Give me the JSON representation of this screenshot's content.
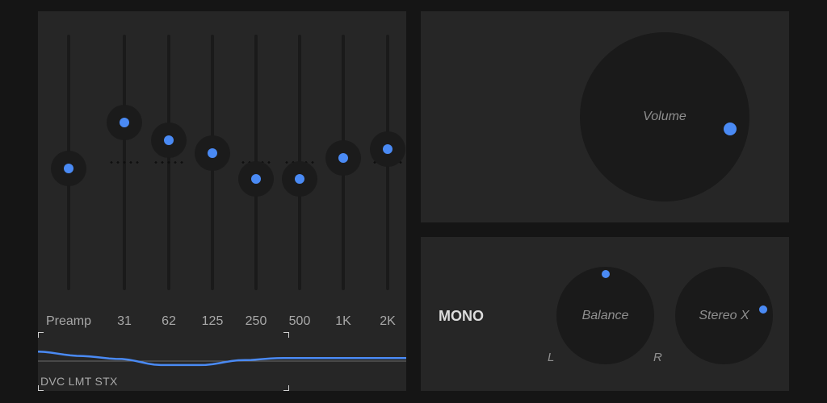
{
  "equalizer": {
    "bands": [
      {
        "label": "Preamp",
        "level": -0.05
      },
      {
        "label": "31",
        "level": 0.31
      },
      {
        "label": "62",
        "level": 0.17
      },
      {
        "label": "125",
        "level": 0.07
      },
      {
        "label": "250",
        "level": -0.13
      },
      {
        "label": "500",
        "level": -0.13
      },
      {
        "label": "1K",
        "level": 0.03
      },
      {
        "label": "2K",
        "level": 0.1
      }
    ],
    "preset_label": "DVC LMT STX"
  },
  "volume": {
    "label": "Volume",
    "level": 0.56
  },
  "effects": {
    "mono_label": "MONO",
    "balance": {
      "label": "Balance",
      "left_label": "L",
      "right_label": "R",
      "level": 0.0
    },
    "stereo_x": {
      "label": "Stereo X",
      "level": 0.45
    }
  },
  "colors": {
    "accent": "#4a8af4",
    "panel": "#262626",
    "background": "#151515"
  }
}
